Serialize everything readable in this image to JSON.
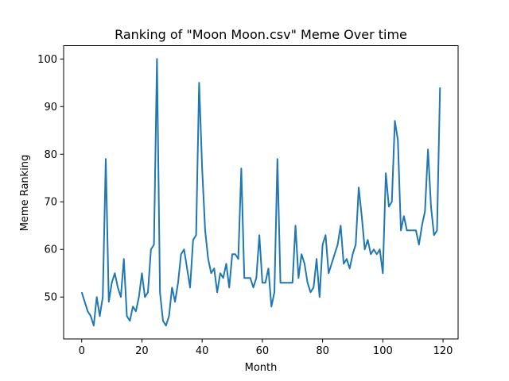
{
  "chart_data": {
    "type": "line",
    "title": "Ranking of \"Moon Moon.csv\" Meme Over time",
    "xlabel": "Month",
    "ylabel": "Meme Ranking",
    "xlim": [
      -6,
      125
    ],
    "ylim": [
      41.2,
      102.8
    ],
    "xticks": [
      0,
      20,
      40,
      60,
      80,
      100,
      120
    ],
    "yticks": [
      50,
      60,
      70,
      80,
      90,
      100
    ],
    "grid": false,
    "color": "#1f77b4",
    "series": [
      {
        "x": [
          0,
          1,
          2,
          3,
          4,
          5,
          6,
          7,
          8,
          9,
          10,
          11,
          12,
          13,
          14,
          15,
          16,
          17,
          18,
          19,
          20,
          21,
          22,
          23,
          24,
          25,
          26,
          27,
          28,
          29,
          30,
          31,
          32,
          33,
          34,
          35,
          36,
          37,
          38,
          39,
          40,
          41,
          42,
          43,
          44,
          45,
          46,
          47,
          48,
          49,
          50,
          51,
          52,
          53,
          54,
          55,
          56,
          57,
          58,
          59,
          60,
          61,
          62,
          63,
          64,
          65,
          66,
          67,
          68,
          69,
          70,
          71,
          72,
          73,
          74,
          75,
          76,
          77,
          78,
          79,
          80,
          81,
          82,
          83,
          84,
          85,
          86,
          87,
          88,
          89,
          90,
          91,
          92,
          93,
          94,
          95,
          96,
          97,
          98,
          99,
          100,
          101,
          102,
          103,
          104,
          105,
          106,
          107,
          108,
          109,
          110,
          111,
          112,
          113,
          114,
          115,
          116,
          117,
          118,
          119
        ],
        "values": [
          51,
          49,
          47,
          46,
          44,
          50,
          46,
          50,
          79,
          49,
          53,
          55,
          52,
          50,
          58,
          46,
          45,
          48,
          47,
          50,
          55,
          50,
          51,
          60,
          61,
          100,
          51,
          45,
          44,
          46,
          52,
          49,
          53,
          59,
          60,
          56,
          52,
          62,
          63,
          95,
          77,
          64,
          58,
          55,
          56,
          51,
          55,
          54,
          57,
          52,
          59,
          59,
          58,
          77,
          54,
          54,
          54,
          52,
          54,
          63,
          53,
          53,
          56,
          48,
          51,
          79,
          53,
          53,
          53,
          53,
          53,
          65,
          54,
          59,
          57,
          53,
          51,
          52,
          58,
          50,
          61,
          63,
          55,
          57,
          59,
          61,
          65,
          57,
          58,
          56,
          59,
          61,
          73,
          67,
          60,
          62,
          59,
          60,
          59,
          60,
          55,
          76,
          69,
          70,
          87,
          83,
          64,
          67,
          64,
          64,
          64,
          64,
          61,
          65,
          68,
          81,
          69,
          63,
          64,
          94
        ]
      }
    ]
  }
}
